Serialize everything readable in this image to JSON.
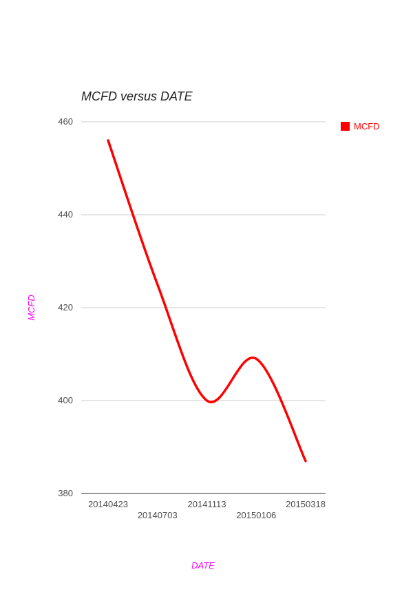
{
  "colors": {
    "series": "#ff0000",
    "axis_title": "#ff00ff",
    "tick_label": "#4d4d4d",
    "gridline": "#cccccc",
    "baseline": "#333333",
    "title": "#212121",
    "background": "#ffffff"
  },
  "legend": {
    "label": "MCFD",
    "swatch_icon": "red-square-icon"
  },
  "chart_data": {
    "type": "line",
    "title": "MCFD versus DATE",
    "xlabel": "DATE",
    "ylabel": "MCFD",
    "categories": [
      "20140423",
      "20140703",
      "20141113",
      "20150106",
      "20150318"
    ],
    "series": [
      {
        "name": "MCFD",
        "color": "#ff0000",
        "values": [
          456,
          425,
          400,
          409,
          387
        ]
      }
    ],
    "ylim": [
      380,
      460
    ],
    "yticks": [
      380,
      400,
      420,
      440,
      460
    ],
    "grid": true,
    "smooth": true,
    "legend_position": "right"
  }
}
